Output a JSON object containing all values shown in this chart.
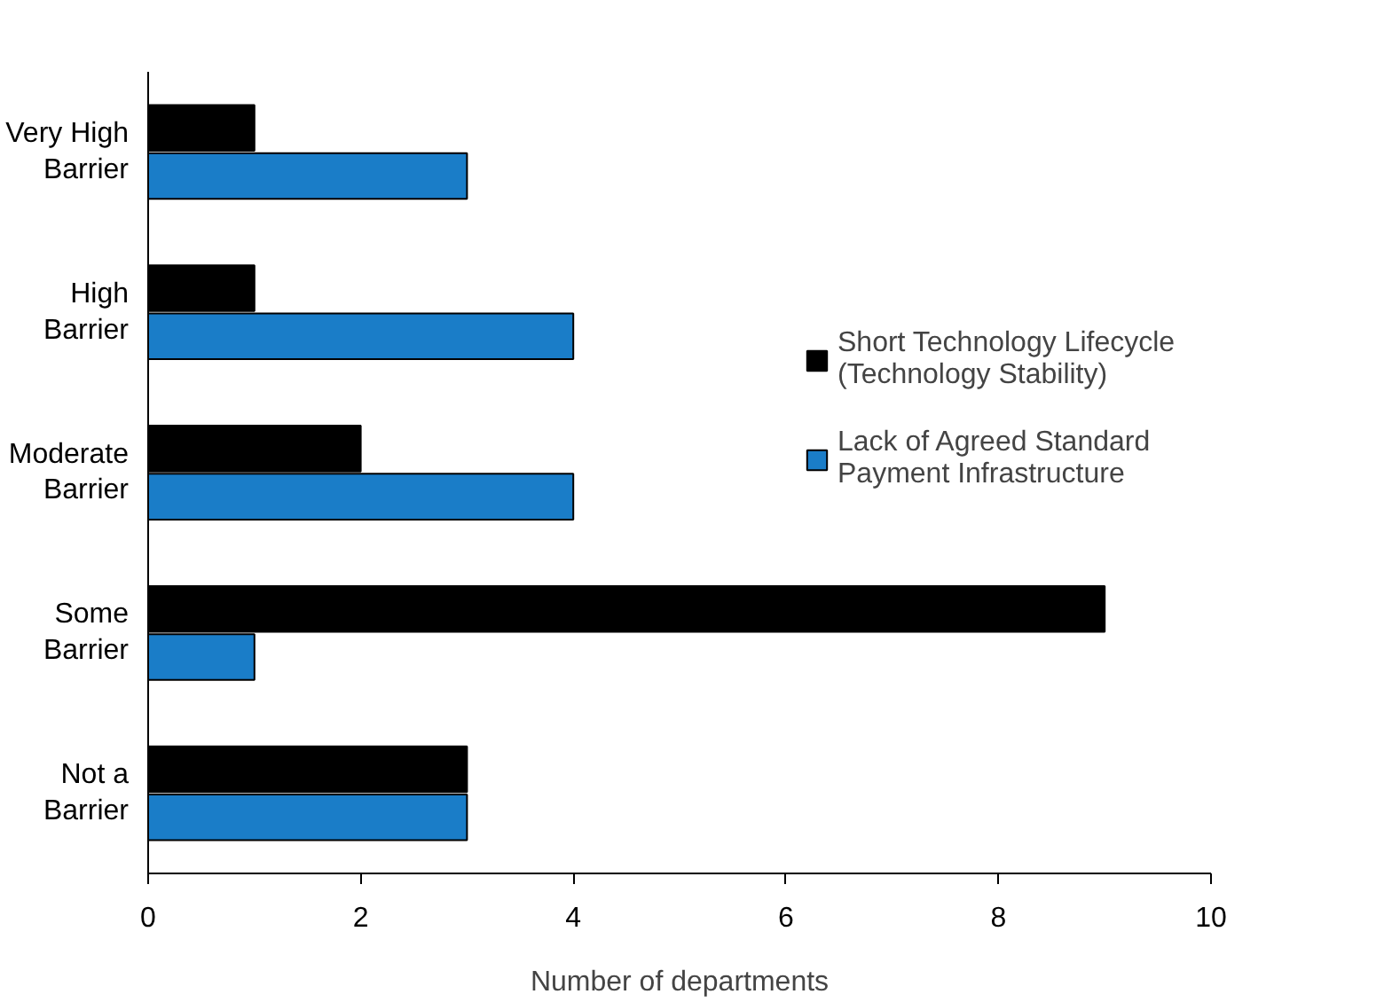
{
  "chart_data": {
    "type": "bar",
    "orientation": "horizontal",
    "xlabel": "Number of departments",
    "categories": [
      "Very High Barrier",
      "High Barrier",
      "Moderate Barrier",
      "Some Barrier",
      "Not a Barrier"
    ],
    "series": [
      {
        "name": "Short Technology Lifecycle (Technology Stability)",
        "color": "#000000",
        "values": [
          1,
          1,
          2,
          9,
          3
        ]
      },
      {
        "name": "Lack of Agreed Standard Payment Infrastructure",
        "color": "#1a7dc8",
        "values": [
          3,
          4,
          4,
          1,
          3
        ]
      }
    ],
    "xlim": [
      0,
      10
    ],
    "xticks": [
      0,
      2,
      4,
      6,
      8,
      10
    ],
    "grid": false,
    "legend": "right"
  }
}
